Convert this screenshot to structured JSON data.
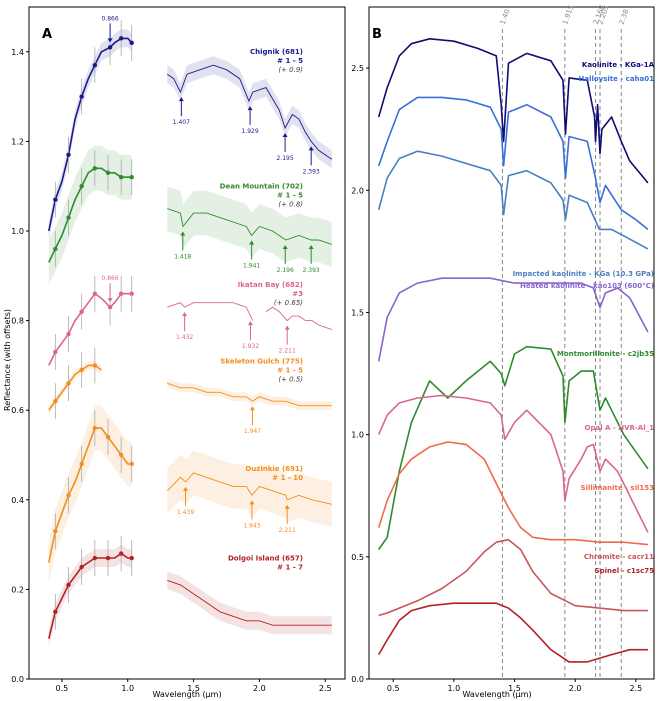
{
  "figure": {
    "panel_a_label": "A",
    "panel_b_label": "B",
    "ylabel": "Reflectance (with offsets)",
    "xlabel": "Wavelength (µm)"
  },
  "chart_data": [
    {
      "type": "line",
      "panel": "A",
      "title": "",
      "xlabel": "Wavelength (µm)",
      "ylabel": "Reflectance (with offsets)",
      "xlim": [
        0.25,
        2.65
      ],
      "ylim": [
        0.0,
        1.5
      ],
      "x_ticks": [
        "0.5",
        "1.0",
        "1.5",
        "2.0",
        "2.5"
      ],
      "y_ticks": [
        "0.0",
        "0.2",
        "0.4",
        "0.6",
        "0.8",
        "1.0",
        "1.2",
        "1.4"
      ],
      "series": [
        {
          "name": "Chignik (681)",
          "subset": "# 1 - 5",
          "offset": "(+ 0.9)",
          "color": "#1a1a8c",
          "vis_x": [
            0.4,
            0.45,
            0.5,
            0.55,
            0.6,
            0.65,
            0.7,
            0.75,
            0.8,
            0.866,
            0.9,
            0.95,
            1.0,
            1.03
          ],
          "vis_y": [
            1.0,
            1.07,
            1.11,
            1.17,
            1.25,
            1.3,
            1.34,
            1.37,
            1.4,
            1.41,
            1.42,
            1.43,
            1.43,
            1.42
          ],
          "nir_x": [
            1.3,
            1.35,
            1.4,
            1.45,
            1.55,
            1.65,
            1.75,
            1.85,
            1.92,
            1.95,
            2.05,
            2.15,
            2.195,
            2.25,
            2.3,
            2.35,
            2.393,
            2.45,
            2.55
          ],
          "nir_y": [
            1.35,
            1.34,
            1.31,
            1.35,
            1.36,
            1.37,
            1.36,
            1.34,
            1.29,
            1.31,
            1.32,
            1.27,
            1.23,
            1.26,
            1.25,
            1.22,
            1.2,
            1.18,
            1.16
          ],
          "band_width": 0.02,
          "annotations": [
            "0.866",
            "1.407",
            "1.929",
            "2.195",
            "2.393"
          ]
        },
        {
          "name": "Dean Mountain (702)",
          "subset": "# 1 - 5",
          "offset": "(+ 0.8)",
          "color": "#2e8b2e",
          "vis_x": [
            0.4,
            0.45,
            0.5,
            0.55,
            0.6,
            0.65,
            0.7,
            0.75,
            0.8,
            0.85,
            0.9,
            0.95,
            1.0,
            1.03
          ],
          "vis_y": [
            0.93,
            0.96,
            0.99,
            1.03,
            1.07,
            1.1,
            1.13,
            1.14,
            1.14,
            1.13,
            1.13,
            1.12,
            1.12,
            1.12
          ],
          "nir_x": [
            1.3,
            1.4,
            1.42,
            1.5,
            1.6,
            1.7,
            1.8,
            1.9,
            1.94,
            2.0,
            2.1,
            2.2,
            2.3,
            2.393,
            2.45,
            2.55
          ],
          "nir_y": [
            1.05,
            1.04,
            1.01,
            1.04,
            1.04,
            1.03,
            1.02,
            1.01,
            0.99,
            1.01,
            1.0,
            0.98,
            0.99,
            0.98,
            0.98,
            0.97
          ],
          "band_width": 0.05,
          "annotations": [
            "1.418",
            "1.941",
            "2.196",
            "2.393"
          ]
        },
        {
          "name": "Ikatan Bay (682)",
          "subset": "#3",
          "offset": "(+ 0.65)",
          "color": "#d9668f",
          "vis_x": [
            0.4,
            0.45,
            0.5,
            0.55,
            0.6,
            0.65,
            0.7,
            0.75,
            0.8,
            0.866,
            0.9,
            0.95,
            1.0,
            1.03
          ],
          "vis_y": [
            0.7,
            0.73,
            0.75,
            0.77,
            0.8,
            0.82,
            0.84,
            0.86,
            0.85,
            0.83,
            0.84,
            0.86,
            0.86,
            0.86
          ],
          "nir_x": [
            1.3,
            1.4,
            1.432,
            1.5,
            1.6,
            1.7,
            1.8,
            1.9,
            1.932,
            1.95
          ],
          "nir_y": [
            0.83,
            0.84,
            0.83,
            0.84,
            0.84,
            0.84,
            0.84,
            0.83,
            0.81,
            0.8
          ],
          "nir2_x": [
            2.05,
            2.1,
            2.15,
            2.211,
            2.25,
            2.3,
            2.35,
            2.4,
            2.45,
            2.55
          ],
          "nir2_y": [
            0.82,
            0.83,
            0.82,
            0.8,
            0.81,
            0.81,
            0.8,
            0.8,
            0.79,
            0.78
          ],
          "band_width": 0.0,
          "annotations": [
            "0.866",
            "1.432",
            "1.932",
            "2.211"
          ]
        },
        {
          "name": "Skeleton Gulch (775)",
          "subset": "# 1 - 5",
          "offset": "(+ 0.5)",
          "color": "#f28e1c",
          "vis_x": [
            0.4,
            0.45,
            0.5,
            0.55,
            0.6,
            0.65,
            0.7,
            0.75,
            0.8
          ],
          "vis_y": [
            0.6,
            0.62,
            0.64,
            0.66,
            0.68,
            0.69,
            0.7,
            0.7,
            0.69
          ],
          "nir_x": [
            1.3,
            1.4,
            1.5,
            1.6,
            1.7,
            1.8,
            1.9,
            1.947,
            2.0,
            2.1,
            2.2,
            2.3,
            2.4,
            2.55
          ],
          "nir_y": [
            0.66,
            0.65,
            0.65,
            0.64,
            0.64,
            0.63,
            0.63,
            0.62,
            0.63,
            0.62,
            0.62,
            0.61,
            0.61,
            0.61
          ],
          "band_width": 0.01,
          "annotations": [
            "1.947"
          ]
        },
        {
          "name": "Ouzinkie (691)",
          "subset": "# 1 - 10",
          "offset": "",
          "color": "#f28e1c",
          "vis_x": [
            0.4,
            0.45,
            0.5,
            0.55,
            0.6,
            0.65,
            0.7,
            0.75,
            0.8,
            0.85,
            0.9,
            0.95,
            1.0,
            1.03
          ],
          "vis_y": [
            0.26,
            0.33,
            0.37,
            0.41,
            0.44,
            0.48,
            0.52,
            0.56,
            0.56,
            0.54,
            0.52,
            0.5,
            0.48,
            0.48
          ],
          "nir_x": [
            1.3,
            1.4,
            1.439,
            1.5,
            1.6,
            1.7,
            1.8,
            1.9,
            1.943,
            2.0,
            2.1,
            2.2,
            2.211,
            2.3,
            2.4,
            2.55
          ],
          "nir_y": [
            0.42,
            0.45,
            0.44,
            0.46,
            0.45,
            0.44,
            0.43,
            0.43,
            0.41,
            0.43,
            0.42,
            0.41,
            0.4,
            0.41,
            0.4,
            0.39
          ],
          "band_width": 0.05,
          "annotations": [
            "1.439",
            "1.943",
            "2.211"
          ]
        },
        {
          "name": "Dolgoi Island (657)",
          "subset": "# 1 - 7",
          "offset": "",
          "color": "#b22222",
          "vis_x": [
            0.4,
            0.45,
            0.5,
            0.55,
            0.6,
            0.65,
            0.7,
            0.75,
            0.8,
            0.85,
            0.9,
            0.95,
            1.0,
            1.03
          ],
          "vis_y": [
            0.09,
            0.15,
            0.18,
            0.21,
            0.23,
            0.25,
            0.26,
            0.27,
            0.27,
            0.27,
            0.27,
            0.28,
            0.27,
            0.27
          ],
          "nir_x": [
            1.3,
            1.4,
            1.5,
            1.6,
            1.7,
            1.8,
            1.9,
            2.0,
            2.1,
            2.2,
            2.3,
            2.4,
            2.55
          ],
          "nir_y": [
            0.22,
            0.21,
            0.19,
            0.17,
            0.15,
            0.14,
            0.13,
            0.13,
            0.12,
            0.12,
            0.12,
            0.12,
            0.12
          ],
          "band_width": 0.02,
          "annotations": []
        }
      ]
    },
    {
      "type": "line",
      "panel": "B",
      "title": "",
      "xlabel": "Wavelength (µm)",
      "ylabel": "",
      "xlim": [
        0.3,
        2.65
      ],
      "ylim": [
        0.0,
        2.75
      ],
      "x_ticks": [
        "0.5",
        "1.0",
        "1.5",
        "2.0",
        "2.5"
      ],
      "y_ticks": [
        "0.0",
        "0.5",
        "1.0",
        "1.5",
        "2.0",
        "2.5"
      ],
      "vlines": [
        "1.40",
        "1.915",
        "2.168",
        "2.205",
        "2.38"
      ],
      "series": [
        {
          "name": "Kaolinite - KGa-1A",
          "color": "#0d0d73",
          "x": [
            0.38,
            0.45,
            0.55,
            0.65,
            0.8,
            1.0,
            1.2,
            1.35,
            1.39,
            1.41,
            1.45,
            1.6,
            1.8,
            1.9,
            1.92,
            1.95,
            2.1,
            2.16,
            2.168,
            2.185,
            2.205,
            2.22,
            2.3,
            2.38,
            2.45,
            2.6
          ],
          "y": [
            2.3,
            2.42,
            2.55,
            2.6,
            2.62,
            2.61,
            2.58,
            2.55,
            2.35,
            2.2,
            2.52,
            2.56,
            2.53,
            2.45,
            2.23,
            2.46,
            2.45,
            2.3,
            2.2,
            2.35,
            2.15,
            2.25,
            2.3,
            2.2,
            2.12,
            2.03
          ]
        },
        {
          "name": "Halloysite - caha01",
          "color": "#3a6fd9",
          "x": [
            0.38,
            0.45,
            0.55,
            0.7,
            0.9,
            1.1,
            1.3,
            1.39,
            1.41,
            1.45,
            1.6,
            1.8,
            1.9,
            1.92,
            1.95,
            2.1,
            2.168,
            2.205,
            2.25,
            2.38,
            2.5,
            2.6
          ],
          "y": [
            2.1,
            2.2,
            2.33,
            2.38,
            2.38,
            2.37,
            2.34,
            2.25,
            2.1,
            2.32,
            2.35,
            2.3,
            2.2,
            2.05,
            2.22,
            2.2,
            2.05,
            1.95,
            2.02,
            1.92,
            1.88,
            1.84
          ]
        },
        {
          "name": "Impacted kaolinite - KGa (10.3 GPa)",
          "color": "#4a7fbf",
          "x": [
            0.38,
            0.45,
            0.55,
            0.7,
            0.9,
            1.1,
            1.3,
            1.39,
            1.41,
            1.45,
            1.6,
            1.8,
            1.9,
            1.92,
            1.95,
            2.1,
            2.2,
            2.3,
            2.45,
            2.6
          ],
          "y": [
            1.92,
            2.05,
            2.13,
            2.16,
            2.14,
            2.11,
            2.08,
            2.02,
            1.9,
            2.06,
            2.08,
            2.03,
            1.96,
            1.88,
            1.98,
            1.95,
            1.84,
            1.84,
            1.8,
            1.76
          ]
        },
        {
          "name": "Heated kaolinite - kao103 (600°C)",
          "color": "#8a63d2",
          "x": [
            0.38,
            0.45,
            0.55,
            0.7,
            0.9,
            1.1,
            1.3,
            1.4,
            1.5,
            1.7,
            1.9,
            2.05,
            2.15,
            2.205,
            2.25,
            2.35,
            2.45,
            2.6
          ],
          "y": [
            1.3,
            1.48,
            1.58,
            1.62,
            1.64,
            1.64,
            1.64,
            1.63,
            1.62,
            1.62,
            1.62,
            1.62,
            1.6,
            1.52,
            1.58,
            1.6,
            1.56,
            1.42
          ]
        },
        {
          "name": "Montmorillonite - c2jb35",
          "color": "#2e8b2e",
          "x": [
            0.38,
            0.45,
            0.55,
            0.65,
            0.8,
            0.95,
            1.1,
            1.3,
            1.39,
            1.42,
            1.5,
            1.6,
            1.8,
            1.9,
            1.915,
            1.95,
            2.05,
            2.15,
            2.205,
            2.25,
            2.3,
            2.4,
            2.5,
            2.6
          ],
          "y": [
            0.53,
            0.58,
            0.85,
            1.05,
            1.22,
            1.15,
            1.22,
            1.3,
            1.25,
            1.2,
            1.33,
            1.36,
            1.35,
            1.24,
            1.05,
            1.22,
            1.26,
            1.26,
            1.1,
            1.15,
            1.1,
            1.0,
            0.93,
            0.86
          ]
        },
        {
          "name": "Opal A - HVR-Al_1",
          "color": "#d9668f",
          "x": [
            0.38,
            0.45,
            0.55,
            0.7,
            0.9,
            1.1,
            1.3,
            1.39,
            1.42,
            1.5,
            1.6,
            1.8,
            1.9,
            1.915,
            1.95,
            2.05,
            2.1,
            2.15,
            2.205,
            2.25,
            2.35,
            2.45,
            2.6
          ],
          "y": [
            1.0,
            1.08,
            1.13,
            1.15,
            1.16,
            1.15,
            1.13,
            1.08,
            0.98,
            1.05,
            1.1,
            1.0,
            0.85,
            0.73,
            0.82,
            0.9,
            0.95,
            0.96,
            0.85,
            0.9,
            0.85,
            0.75,
            0.6
          ]
        },
        {
          "name": "Sillimanite - sil153",
          "color": "#f06a4a",
          "x": [
            0.38,
            0.45,
            0.55,
            0.65,
            0.8,
            0.95,
            1.1,
            1.25,
            1.35,
            1.45,
            1.55,
            1.65,
            1.8,
            2.0,
            2.2,
            2.4,
            2.6
          ],
          "y": [
            0.62,
            0.73,
            0.84,
            0.9,
            0.95,
            0.97,
            0.96,
            0.9,
            0.8,
            0.7,
            0.62,
            0.58,
            0.57,
            0.57,
            0.56,
            0.56,
            0.55
          ]
        },
        {
          "name": "Chromite - cacr11",
          "color": "#c9555d",
          "x": [
            0.38,
            0.45,
            0.55,
            0.7,
            0.9,
            1.1,
            1.25,
            1.35,
            1.45,
            1.55,
            1.65,
            1.8,
            2.0,
            2.2,
            2.4,
            2.6
          ],
          "y": [
            0.26,
            0.27,
            0.29,
            0.32,
            0.37,
            0.44,
            0.52,
            0.56,
            0.57,
            0.53,
            0.44,
            0.35,
            0.3,
            0.29,
            0.28,
            0.28
          ]
        },
        {
          "name": "Spinel - c1sc75",
          "color": "#b22222",
          "x": [
            0.38,
            0.45,
            0.55,
            0.65,
            0.8,
            1.0,
            1.2,
            1.35,
            1.45,
            1.55,
            1.65,
            1.8,
            1.95,
            2.1,
            2.3,
            2.45,
            2.6
          ],
          "y": [
            0.1,
            0.16,
            0.24,
            0.28,
            0.3,
            0.31,
            0.31,
            0.31,
            0.29,
            0.25,
            0.2,
            0.12,
            0.07,
            0.07,
            0.1,
            0.12,
            0.12
          ]
        }
      ]
    }
  ]
}
